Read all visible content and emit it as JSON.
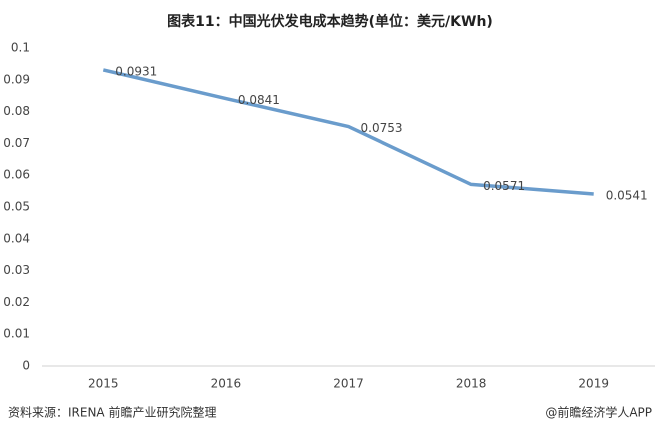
{
  "chart_data": {
    "type": "line",
    "title": "图表11：中国光伏发电成本趋势(单位：美元/KWh)",
    "categories": [
      "2015",
      "2016",
      "2017",
      "2018",
      "2019"
    ],
    "series": [
      {
        "name": "光伏发电成本",
        "color": "#6a9ccc",
        "values": [
          0.0931,
          0.0841,
          0.0753,
          0.0571,
          0.0541
        ]
      }
    ],
    "ylim": [
      0,
      0.1
    ],
    "yticks": [
      0,
      0.01,
      0.02,
      0.03,
      0.04,
      0.05,
      0.06,
      0.07,
      0.08,
      0.09,
      0.1
    ],
    "grid": false,
    "legend": false,
    "source": "资料来源：IRENA 前瞻产业研究院整理",
    "credit": "@前瞻经济学人APP"
  }
}
